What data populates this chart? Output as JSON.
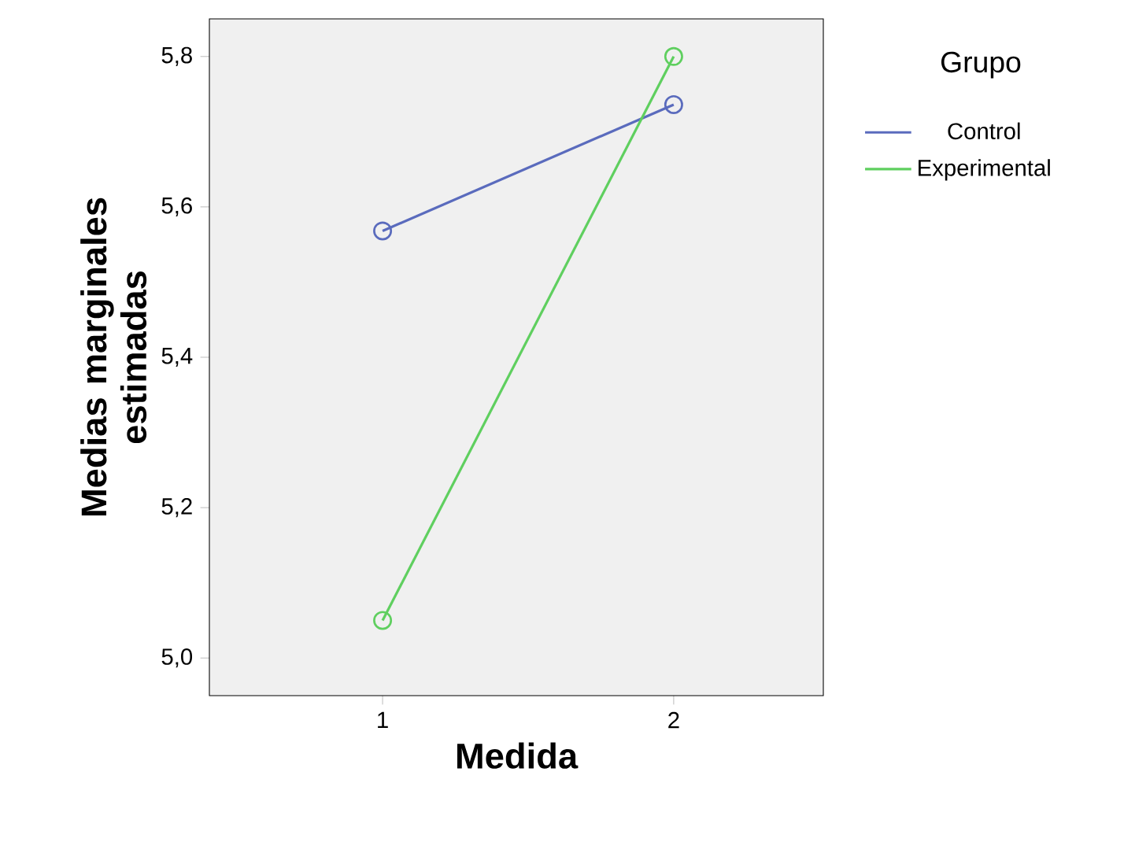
{
  "chart_data": {
    "type": "line",
    "xlabel": "Medida",
    "ylabel": "Medias marginales estimadas",
    "legend_title": "Grupo",
    "categories": [
      "1",
      "2"
    ],
    "series": [
      {
        "name": "Control",
        "color": "#5a6bbd",
        "values": [
          5.568,
          5.736
        ]
      },
      {
        "name": "Experimental",
        "color": "#5fcf5f",
        "values": [
          5.05,
          5.8
        ]
      }
    ],
    "ylim": [
      4.95,
      5.85
    ],
    "yticks": [
      {
        "value": 5.0,
        "label": "5,0"
      },
      {
        "value": 5.2,
        "label": "5,2"
      },
      {
        "value": 5.4,
        "label": "5,4"
      },
      {
        "value": 5.6,
        "label": "5,6"
      },
      {
        "value": 5.8,
        "label": "5,8"
      }
    ],
    "marker": "circle",
    "line_style": "solid",
    "grid": false,
    "legend": "top right"
  }
}
